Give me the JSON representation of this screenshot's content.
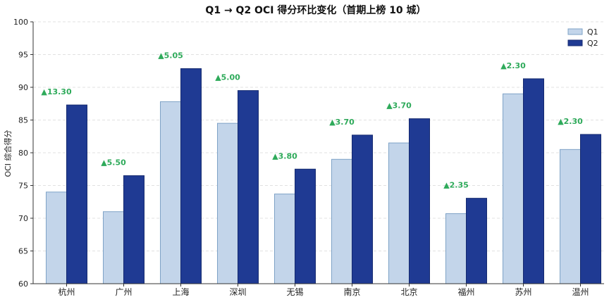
{
  "chart_data": {
    "type": "bar",
    "title": "Q1 → Q2 OCI 得分环比变化（首期上榜 10 城）",
    "xlabel": "",
    "ylabel": "OCI 综合得分",
    "ylim": [
      60,
      100
    ],
    "yticks": [
      60,
      65,
      70,
      75,
      80,
      85,
      90,
      95,
      100
    ],
    "grid": "y-dashed",
    "legend_position": "top-right",
    "categories": [
      "杭州",
      "广州",
      "上海",
      "深圳",
      "无锡",
      "南京",
      "北京",
      "福州",
      "苏州",
      "温州"
    ],
    "series": [
      {
        "name": "Q1",
        "values": [
          74.0,
          71.0,
          87.8,
          84.5,
          73.7,
          79.0,
          81.5,
          70.7,
          89.0,
          80.5
        ],
        "color": "#c3d5ea",
        "stroke": "#7fa3c7"
      },
      {
        "name": "Q2",
        "values": [
          87.3,
          76.5,
          92.85,
          89.5,
          77.5,
          82.7,
          85.2,
          73.05,
          91.3,
          82.8
        ],
        "color": "#1f3a93",
        "stroke": "#152a70"
      }
    ],
    "delta_labels": [
      "▲13.30",
      "▲5.50",
      "▲5.05",
      "▲5.00",
      "▲3.80",
      "▲3.70",
      "▲3.70",
      "▲2.35",
      "▲2.30",
      "▲2.30"
    ],
    "delta_color": "#2eaa5a"
  }
}
